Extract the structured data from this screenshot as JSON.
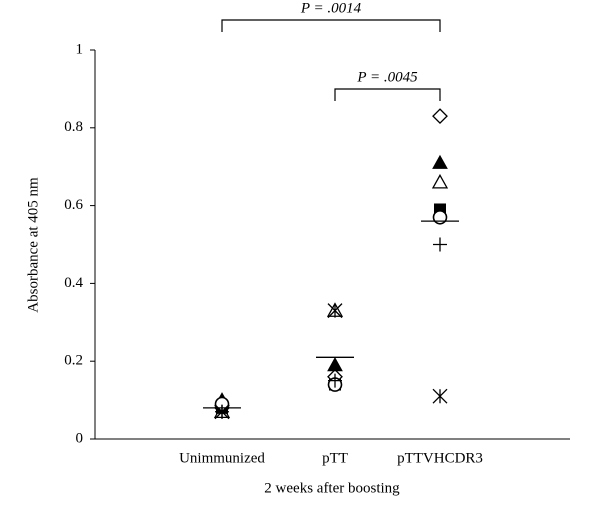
{
  "chart_data": {
    "type": "dot",
    "ylabel": "Absorbance at 405 nm",
    "xlabel": "2 weeks after boosting",
    "categories": [
      "Unimmunized",
      "pTT",
      "pTTVHCDR3"
    ],
    "ylim": [
      0,
      1
    ],
    "yticks": [
      0,
      0.2,
      0.4,
      0.6,
      0.8,
      1
    ],
    "color": "#000000",
    "series": [
      {
        "marker": "diamond-open",
        "values": [
          0.08,
          0.16,
          0.83
        ]
      },
      {
        "marker": "triangle-filled",
        "values": [
          0.1,
          0.19,
          0.71
        ]
      },
      {
        "marker": "triangle-open",
        "values": [
          0.07,
          0.33,
          0.66
        ]
      },
      {
        "marker": "square-filled",
        "values": [
          0.08,
          0.14,
          0.59
        ]
      },
      {
        "marker": "circle-open",
        "values": [
          0.09,
          0.14,
          0.57
        ]
      },
      {
        "marker": "plus",
        "values": [
          0.07,
          0.15,
          0.5
        ]
      },
      {
        "marker": "asterisk",
        "values": [
          0.07,
          0.33,
          0.11
        ]
      }
    ],
    "mean": [
      0.08,
      0.21,
      0.56
    ],
    "annotations": [
      {
        "text": "P = .0014"
      },
      {
        "text": "P = .0045"
      }
    ]
  }
}
